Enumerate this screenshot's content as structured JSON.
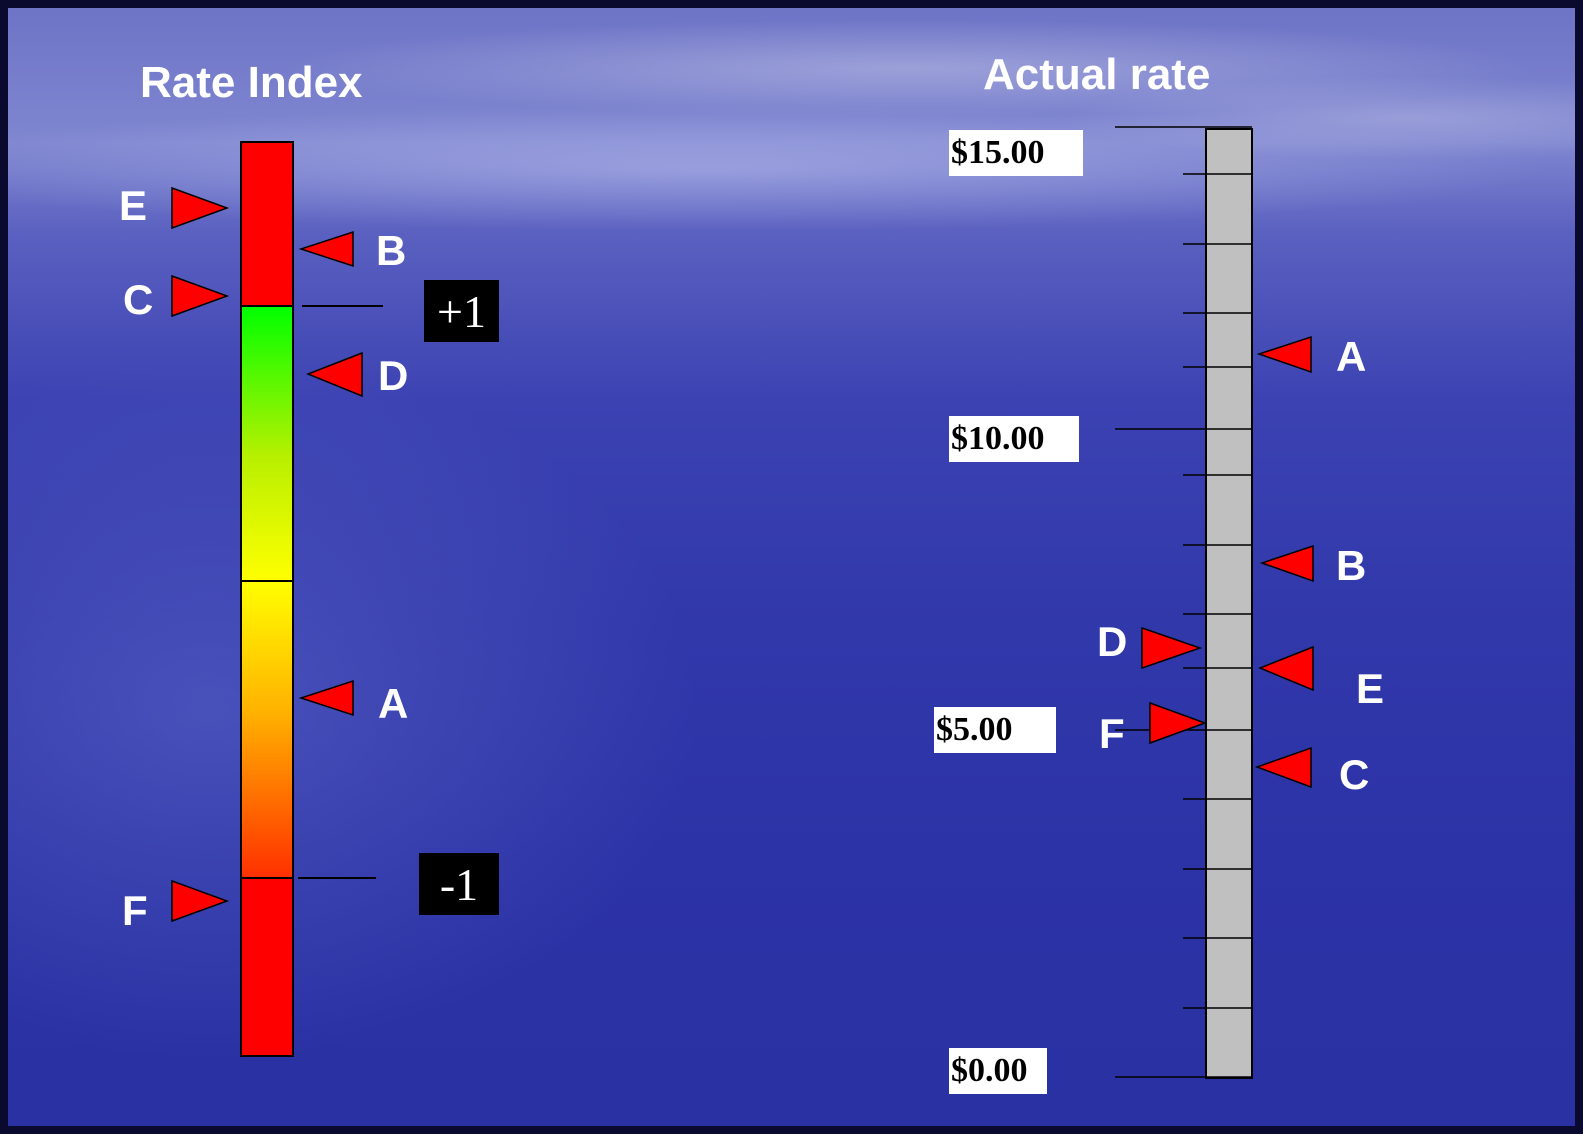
{
  "left": {
    "title": "Rate Index",
    "upper_label": "+1",
    "lower_label": "-1",
    "markers": [
      {
        "letter": "E",
        "side": "left"
      },
      {
        "letter": "B",
        "side": "right"
      },
      {
        "letter": "C",
        "side": "left"
      },
      {
        "letter": "D",
        "side": "right"
      },
      {
        "letter": "A",
        "side": "right"
      },
      {
        "letter": "F",
        "side": "left"
      }
    ]
  },
  "right": {
    "title": "Actual rate",
    "scale_labels": [
      "$15.00",
      "$10.00",
      "$5.00",
      "$0.00"
    ],
    "markers": [
      {
        "letter": "A",
        "side": "right"
      },
      {
        "letter": "B",
        "side": "right"
      },
      {
        "letter": "D",
        "side": "left"
      },
      {
        "letter": "E",
        "side": "right"
      },
      {
        "letter": "F",
        "side": "left"
      },
      {
        "letter": "C",
        "side": "right"
      }
    ]
  },
  "colors": {
    "marker": "#ff0000",
    "red_zone": "#ff0000",
    "green": "#00ff00",
    "yellow": "#ffff00",
    "orange": "#ff4000",
    "scale_bar": "#c0c0c0"
  }
}
